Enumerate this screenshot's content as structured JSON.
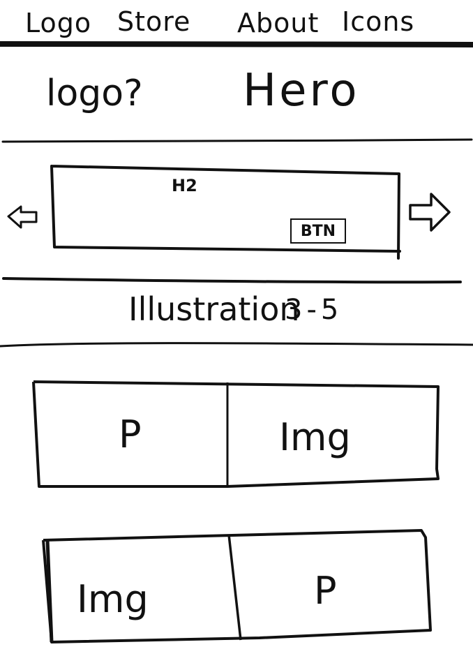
{
  "nav": {
    "logo": "Logo",
    "store": "Store",
    "about": "About",
    "icons": "Icons"
  },
  "hero": {
    "logo_label": "logo?",
    "title": "Hero"
  },
  "slider": {
    "heading": "H2",
    "button_label": "BTN",
    "prev_icon": "arrow-left-icon",
    "next_icon": "arrow-right-icon"
  },
  "illustration": {
    "label": "Illustration",
    "count": "3-5"
  },
  "content_rows": [
    {
      "left": "P",
      "right": "Img"
    },
    {
      "left": "Img",
      "right": "P"
    }
  ],
  "colors": {
    "ink": "#111111",
    "paper": "#ffffff"
  }
}
